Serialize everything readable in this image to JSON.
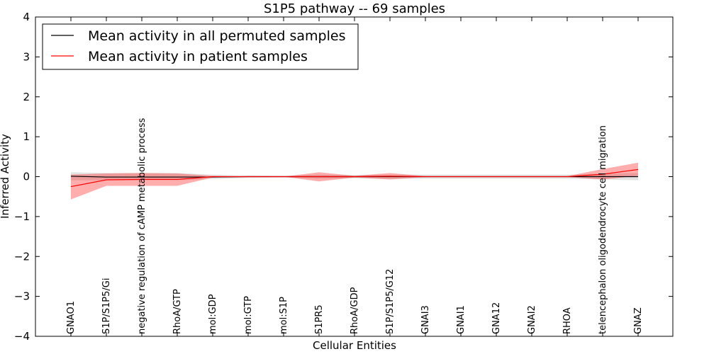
{
  "chart_data": {
    "type": "line",
    "title": "S1P5 pathway -- 69 samples",
    "xlabel": "Cellular Entities",
    "ylabel": "Inferred Activity",
    "ylim": [
      -4,
      4
    ],
    "yticks": [
      -4,
      -3,
      -2,
      -1,
      0,
      1,
      2,
      3,
      4
    ],
    "ytick_labels": [
      "−4",
      "−3",
      "−2",
      "−1",
      "0",
      "1",
      "2",
      "3",
      "4"
    ],
    "grid": false,
    "legend_position": "top-left",
    "categories": [
      "GNAO1",
      "S1P/S1P5/Gi",
      "negative regulation of cAMP metabolic process",
      "RhoA/GTP",
      "mol:GDP",
      "mol:GTP",
      "mol:S1P",
      "S1PR5",
      "RhoA/GDP",
      "S1P/S1P5/G12",
      "GNAI3",
      "GNAI1",
      "GNA12",
      "GNAI2",
      "RHOA",
      "telencephalon oligodendrocyte cell migration",
      "GNAZ"
    ],
    "series": [
      {
        "name": "Mean activity in all permuted samples",
        "color": "#000000",
        "band_color": "#b0b0b0",
        "values": [
          0.01,
          -0.01,
          -0.01,
          -0.01,
          -0.01,
          0.0,
          0.0,
          0.0,
          0.0,
          0.0,
          0.0,
          0.0,
          0.0,
          0.0,
          0.0,
          0.0,
          0.0
        ],
        "lower": [
          -0.09,
          -0.09,
          -0.09,
          -0.09,
          -0.06,
          -0.03,
          -0.02,
          -0.05,
          -0.04,
          -0.05,
          -0.05,
          -0.05,
          -0.05,
          -0.05,
          -0.05,
          -0.07,
          -0.09
        ],
        "upper": [
          0.11,
          0.09,
          0.09,
          0.09,
          0.05,
          0.03,
          0.02,
          0.05,
          0.04,
          0.05,
          0.05,
          0.05,
          0.05,
          0.05,
          0.05,
          0.07,
          0.09
        ]
      },
      {
        "name": "Mean activity in patient samples",
        "color": "#ff0000",
        "band_color": "#ff0000",
        "values": [
          -0.25,
          -0.08,
          -0.07,
          -0.07,
          0.0,
          0.0,
          0.0,
          0.0,
          0.0,
          0.01,
          0.0,
          0.0,
          0.0,
          0.0,
          0.0,
          0.06,
          0.18
        ],
        "lower": [
          -0.57,
          -0.23,
          -0.23,
          -0.23,
          -0.02,
          0.0,
          0.0,
          -0.12,
          -0.02,
          -0.07,
          -0.01,
          0.0,
          0.0,
          0.0,
          -0.01,
          -0.07,
          0.02
        ],
        "upper": [
          0.05,
          0.08,
          0.09,
          0.08,
          0.02,
          0.0,
          0.0,
          0.11,
          0.02,
          0.09,
          0.01,
          0.0,
          0.0,
          0.0,
          0.01,
          0.19,
          0.35
        ]
      }
    ]
  }
}
